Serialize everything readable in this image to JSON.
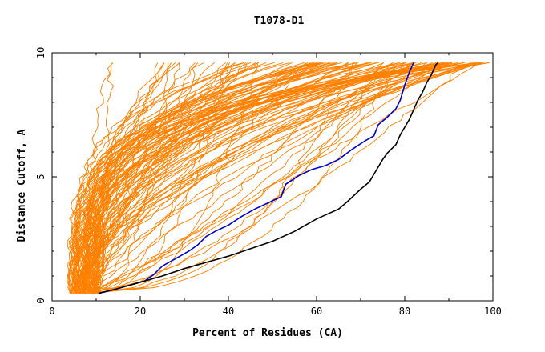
{
  "chart_data": {
    "type": "line",
    "title": "T1078-D1",
    "xlabel": "Percent of Residues (CA)",
    "ylabel": "Distance Cutoff, A",
    "xlim": [
      0,
      100
    ],
    "ylim": [
      0,
      10
    ],
    "x_ticks": [
      "0",
      "20",
      "40",
      "60",
      "80",
      "100"
    ],
    "y_ticks": [
      "0",
      "5",
      "10"
    ],
    "grid": false,
    "legend": "none",
    "colors": {
      "bulk": "#ff8000",
      "highlight_blue": "#0000cc",
      "highlight_black": "#000000",
      "axes": "#000000"
    },
    "background_curves": {
      "count": 120,
      "x_start_range": [
        4,
        11
      ],
      "x_end_range": [
        9,
        100
      ],
      "y_range": [
        0.3,
        9.6
      ],
      "description_free": true
    },
    "series": [
      {
        "values_xy": [
          [
            10.5,
            0.3
          ],
          [
            14,
            0.45
          ],
          [
            18,
            0.65
          ],
          [
            21,
            0.8
          ],
          [
            23,
            1.05
          ],
          [
            25,
            1.4
          ],
          [
            28,
            1.7
          ],
          [
            31,
            2.0
          ],
          [
            33,
            2.25
          ],
          [
            35,
            2.6
          ],
          [
            37,
            2.8
          ],
          [
            40,
            3.05
          ],
          [
            43,
            3.4
          ],
          [
            46,
            3.7
          ],
          [
            49,
            3.95
          ],
          [
            52,
            4.2
          ],
          [
            53,
            4.7
          ],
          [
            56,
            5.05
          ],
          [
            59,
            5.3
          ],
          [
            62,
            5.45
          ],
          [
            65,
            5.7
          ],
          [
            68,
            6.1
          ],
          [
            71,
            6.45
          ],
          [
            73,
            6.65
          ],
          [
            74,
            7.1
          ],
          [
            76,
            7.4
          ],
          [
            78,
            7.75
          ],
          [
            79,
            8.1
          ],
          [
            80,
            8.7
          ],
          [
            81,
            9.2
          ],
          [
            82,
            9.6
          ]
        ],
        "color": "#0000cc"
      },
      {
        "values_xy": [
          [
            10.5,
            0.3
          ],
          [
            15,
            0.5
          ],
          [
            20,
            0.75
          ],
          [
            25,
            1.0
          ],
          [
            30,
            1.3
          ],
          [
            35,
            1.55
          ],
          [
            40,
            1.8
          ],
          [
            45,
            2.1
          ],
          [
            50,
            2.4
          ],
          [
            55,
            2.8
          ],
          [
            60,
            3.3
          ],
          [
            65,
            3.7
          ],
          [
            67,
            4.0
          ],
          [
            70,
            4.5
          ],
          [
            72,
            4.8
          ],
          [
            73,
            5.1
          ],
          [
            74,
            5.4
          ],
          [
            75,
            5.7
          ],
          [
            76,
            5.95
          ],
          [
            78,
            6.3
          ],
          [
            79,
            6.7
          ],
          [
            80,
            7.0
          ],
          [
            81,
            7.3
          ],
          [
            82,
            7.7
          ],
          [
            83,
            8.1
          ],
          [
            84,
            8.4
          ],
          [
            85,
            8.8
          ],
          [
            86,
            9.1
          ],
          [
            87,
            9.5
          ],
          [
            87.5,
            9.6
          ]
        ],
        "color": "#000000"
      }
    ]
  }
}
